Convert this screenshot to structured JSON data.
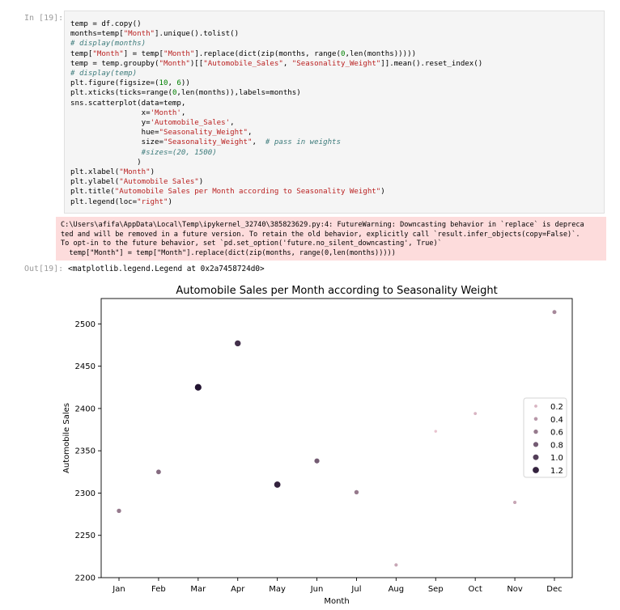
{
  "notebook": {
    "in_prompt": "In [19]:",
    "out_prompt": "Out[19]:",
    "code_lines": [
      [
        {
          "t": "temp = df.copy()"
        }
      ],
      [
        {
          "t": "months=temp["
        },
        {
          "t": "\"Month\"",
          "c": "str"
        },
        {
          "t": "].unique().tolist()"
        }
      ],
      [
        {
          "t": "# display(months)",
          "c": "cmt"
        }
      ],
      [
        {
          "t": "temp["
        },
        {
          "t": "\"Month\"",
          "c": "str"
        },
        {
          "t": "] = temp["
        },
        {
          "t": "\"Month\"",
          "c": "str"
        },
        {
          "t": "].replace(dict(zip(months, range("
        },
        {
          "t": "0",
          "c": "num"
        },
        {
          "t": ",len(months)))))"
        }
      ],
      [
        {
          "t": "temp = temp.groupby("
        },
        {
          "t": "\"Month\"",
          "c": "str"
        },
        {
          "t": ")[["
        },
        {
          "t": "\"Automobile_Sales\"",
          "c": "str"
        },
        {
          "t": ", "
        },
        {
          "t": "\"Seasonality_Weight\"",
          "c": "str"
        },
        {
          "t": "]].mean().reset_index()"
        }
      ],
      [
        {
          "t": "# display(temp)",
          "c": "cmt"
        }
      ],
      [
        {
          "t": "plt.figure(figsize=("
        },
        {
          "t": "10",
          "c": "num"
        },
        {
          "t": ", "
        },
        {
          "t": "6",
          "c": "num"
        },
        {
          "t": "))"
        }
      ],
      [
        {
          "t": "plt.xticks(ticks=range("
        },
        {
          "t": "0",
          "c": "num"
        },
        {
          "t": ",len(months)),labels=months)"
        }
      ],
      [
        {
          "t": "sns.scatterplot(data=temp,"
        }
      ],
      [
        {
          "t": "                x="
        },
        {
          "t": "'Month'",
          "c": "str"
        },
        {
          "t": ","
        }
      ],
      [
        {
          "t": "                y="
        },
        {
          "t": "'Automobile_Sales'",
          "c": "str"
        },
        {
          "t": ","
        }
      ],
      [
        {
          "t": "                hue="
        },
        {
          "t": "\"Seasonality_Weight\"",
          "c": "str"
        },
        {
          "t": ","
        }
      ],
      [
        {
          "t": "                size="
        },
        {
          "t": "\"Seasonality_Weight\"",
          "c": "str"
        },
        {
          "t": ",  "
        },
        {
          "t": "# pass in weights",
          "c": "cmt"
        }
      ],
      [
        {
          "t": "                "
        },
        {
          "t": "#sizes=(20, 1500)",
          "c": "cmt"
        }
      ],
      [
        {
          "t": "               )"
        }
      ],
      [
        {
          "t": "plt.xlabel("
        },
        {
          "t": "\"Month\"",
          "c": "str"
        },
        {
          "t": ")"
        }
      ],
      [
        {
          "t": "plt.ylabel("
        },
        {
          "t": "\"Automobile Sales\"",
          "c": "str"
        },
        {
          "t": ")"
        }
      ],
      [
        {
          "t": "plt.title("
        },
        {
          "t": "\"Automobile Sales per Month according to Seasonality Weight\"",
          "c": "str"
        },
        {
          "t": ")"
        }
      ],
      [
        {
          "t": "plt.legend(loc="
        },
        {
          "t": "\"right\"",
          "c": "str"
        },
        {
          "t": ")"
        }
      ]
    ],
    "warning_lines": [
      "C:\\Users\\afifa\\AppData\\Local\\Temp\\ipykernel_32740\\385823629.py:4: FutureWarning: Downcasting behavior in `replace` is depreca",
      "ted and will be removed in a future version. To retain the old behavior, explicitly call `result.infer_objects(copy=False)`.",
      "To opt-in to the future behavior, set `pd.set_option('future.no_silent_downcasting', True)`",
      "  temp[\"Month\"] = temp[\"Month\"].replace(dict(zip(months, range(0,len(months)))))"
    ],
    "output_text": "<matplotlib.legend.Legend at 0x2a7458724d0>"
  },
  "chart_data": {
    "type": "scatter",
    "title": "Automobile Sales per Month according to Seasonality Weight",
    "xlabel": "Month",
    "ylabel": "Automobile Sales",
    "categories": [
      "Jan",
      "Feb",
      "Mar",
      "Apr",
      "May",
      "Jun",
      "Jul",
      "Aug",
      "Sep",
      "Oct",
      "Nov",
      "Dec"
    ],
    "values": [
      2279,
      2325,
      2425,
      2477,
      2310,
      2338,
      2301,
      2215,
      2373,
      2394,
      2289,
      2514
    ],
    "weights": [
      0.6,
      0.7,
      1.3,
      1.1,
      1.2,
      0.8,
      0.6,
      0.3,
      0.1,
      0.2,
      0.3,
      0.5
    ],
    "ylim": [
      2200,
      2530
    ],
    "yticks": [
      2200,
      2250,
      2300,
      2350,
      2400,
      2450,
      2500
    ],
    "legend": {
      "placement": "right",
      "entries": [
        {
          "label": "0.2",
          "value": 0.2
        },
        {
          "label": "0.4",
          "value": 0.4
        },
        {
          "label": "0.6",
          "value": 0.6
        },
        {
          "label": "0.8",
          "value": 0.8
        },
        {
          "label": "1.0",
          "value": 1.0
        },
        {
          "label": "1.2",
          "value": 1.2
        }
      ]
    },
    "colors": {
      "light": "#e8c3cf",
      "dark": "#221331"
    },
    "grid": false
  }
}
